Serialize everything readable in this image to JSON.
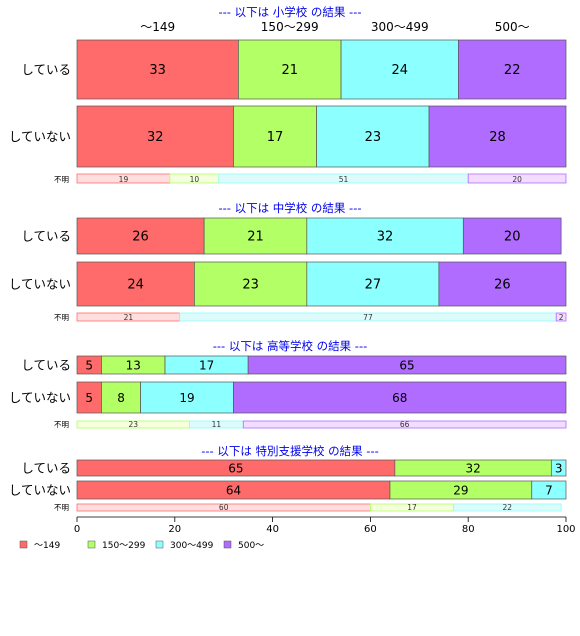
{
  "chart_data": {
    "type": "bar",
    "orientation": "horizontal",
    "stacked": true,
    "normalized_percent": true,
    "xlim": [
      0,
      100
    ],
    "xticks": [
      0,
      20,
      40,
      60,
      80,
      100
    ],
    "grid": false,
    "legend_position": "bottom",
    "categories": [
      "〜149",
      "150〜299",
      "300〜499",
      "500〜"
    ],
    "colors": [
      "#ff6b6b",
      "#b3ff66",
      "#8cffff",
      "#b06bff"
    ],
    "light_colors": [
      "#ffdede",
      "#f5ffdc",
      "#defbfb",
      "#f2dcff"
    ],
    "header_labels": [
      "〜149",
      "150〜299",
      "300〜499",
      "500〜"
    ],
    "panels": [
      {
        "title": "--- 以下は 小学校 の結果 ---",
        "rows": [
          {
            "label": "している",
            "values": [
              33,
              21,
              24,
              22
            ]
          },
          {
            "label": "していない",
            "values": [
              32,
              17,
              23,
              28
            ]
          }
        ],
        "unknown": {
          "label": "不明",
          "values": [
            19,
            10,
            51,
            20
          ]
        }
      },
      {
        "title": "--- 以下は 中学校 の結果 ---",
        "rows": [
          {
            "label": "している",
            "values": [
              26,
              21,
              32,
              20
            ]
          },
          {
            "label": "していない",
            "values": [
              24,
              23,
              27,
              26
            ]
          }
        ],
        "unknown": {
          "label": "不明",
          "values": [
            21,
            0,
            77,
            2
          ]
        }
      },
      {
        "title": "--- 以下は 高等学校 の結果 ---",
        "rows": [
          {
            "label": "している",
            "values": [
              5,
              13,
              17,
              65
            ]
          },
          {
            "label": "していない",
            "values": [
              5,
              8,
              19,
              68
            ]
          }
        ],
        "unknown": {
          "label": "不明",
          "values": [
            0,
            23,
            11,
            66
          ]
        }
      },
      {
        "title": "--- 以下は 特別支援学校 の結果 ---",
        "rows": [
          {
            "label": "している",
            "values": [
              65,
              32,
              3,
              0
            ]
          },
          {
            "label": "していない",
            "values": [
              64,
              29,
              7,
              0
            ]
          }
        ],
        "unknown": {
          "label": "不明",
          "values": [
            60,
            17,
            22,
            0
          ]
        }
      }
    ]
  }
}
